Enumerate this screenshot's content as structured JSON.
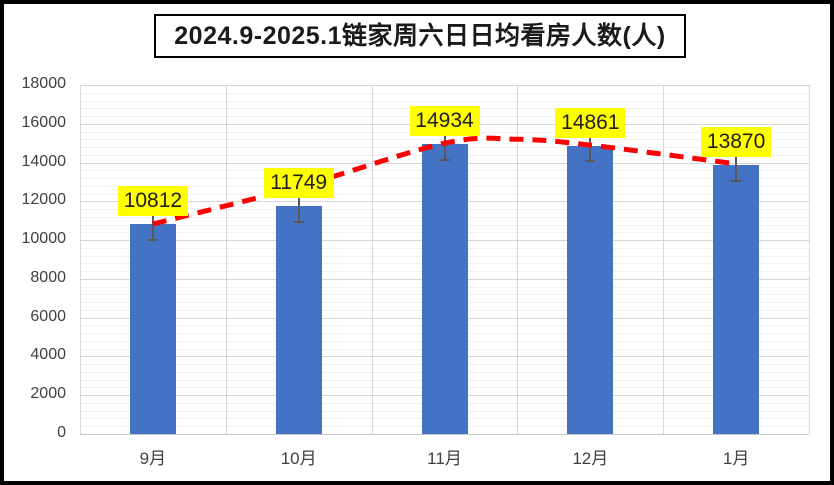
{
  "chart": {
    "frame_border_color": "#000000",
    "background": "#ffffff"
  },
  "chart_data": {
    "type": "bar",
    "title": "2024.9-2025.1链家周六日日均看房人数(人)",
    "categories": [
      "9月",
      "10月",
      "11月",
      "12月",
      "1月"
    ],
    "values": [
      10812,
      11749,
      14934,
      14861,
      13870
    ],
    "data_labels": [
      "10812",
      "11749",
      "14934",
      "14861",
      "13870"
    ],
    "xlabel": "",
    "ylabel": "",
    "ylim": [
      0,
      18000
    ],
    "ytick_step": 2000,
    "minor_unit": 400,
    "ytick_labels": [
      "0",
      "2000",
      "4000",
      "6000",
      "8000",
      "10000",
      "12000",
      "14000",
      "16000",
      "18000"
    ],
    "grid": "major-and-minor, vertical category boundaries",
    "legend": "none",
    "error_bars": {
      "up": 550,
      "down": 800
    },
    "trend_line": {
      "style": "dashed",
      "points": [
        {
          "x": 0,
          "value": 10830
        },
        {
          "x": 1,
          "value": 12750
        },
        {
          "x": 2,
          "value": 15000
        },
        {
          "x": 2.5,
          "value": 15200
        },
        {
          "x": 3,
          "value": 14900
        },
        {
          "x": 4,
          "value": 13930
        }
      ]
    },
    "colors": {
      "bar": "#4472C4",
      "label_bg": "#FFFF00",
      "label_text": "#1f1f1f",
      "trend": "#FF0000",
      "error_bar": "#595959",
      "grid_major": "#D6D6D6",
      "grid_minor": "#F1F1F1",
      "axis_line": "#C8C8C8",
      "tick_text": "#404040"
    }
  }
}
